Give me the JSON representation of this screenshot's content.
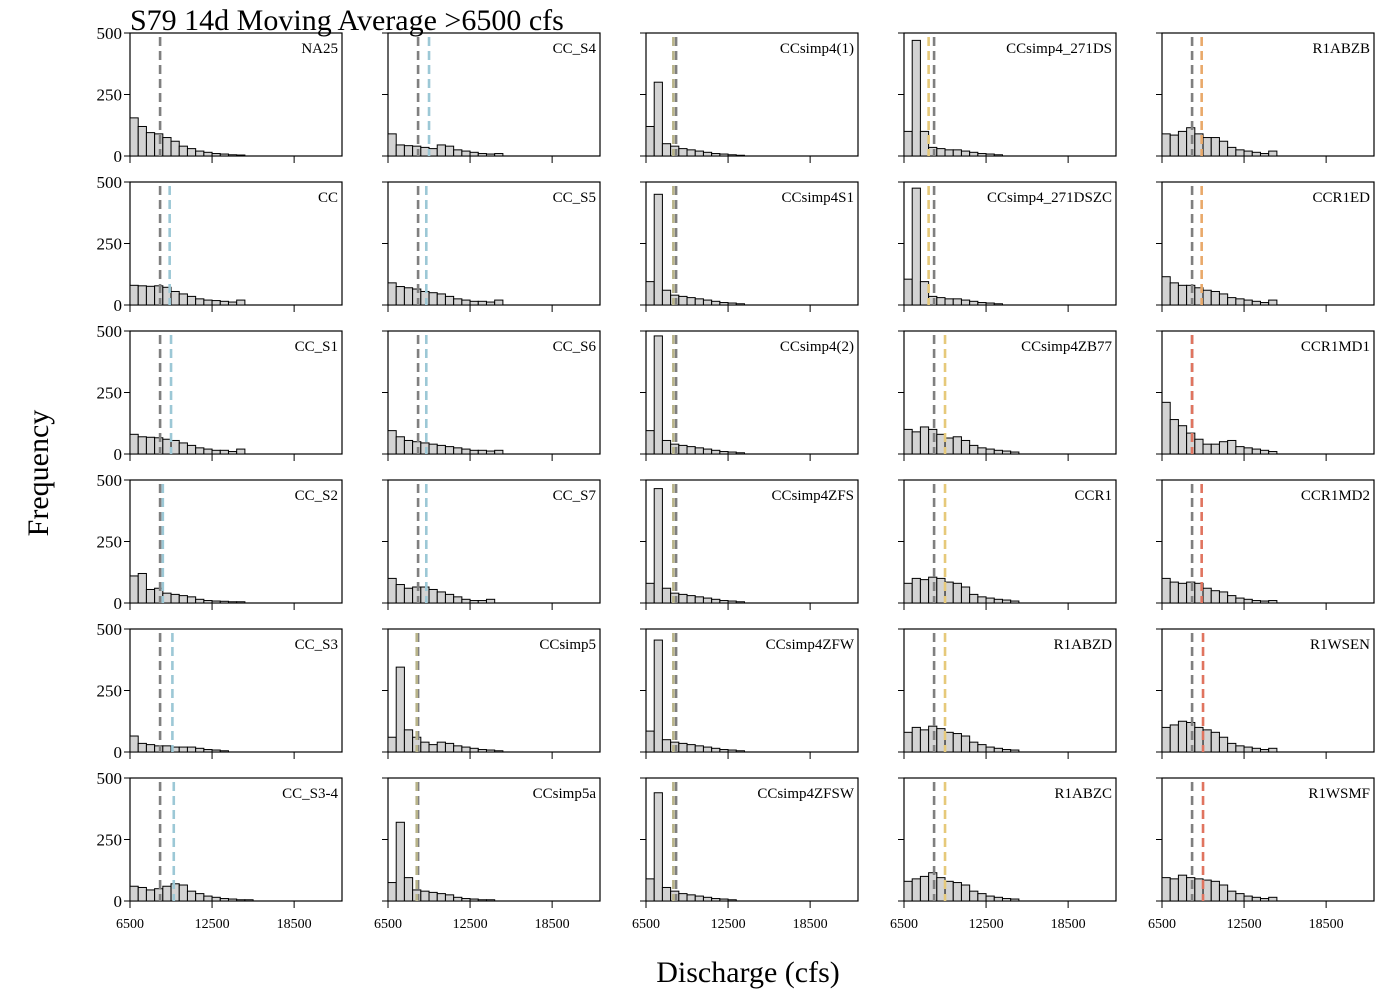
{
  "chart_data": {
    "type": "bar",
    "chart_kind": "histogram-small-multiples",
    "title": "S79 14d Moving Average >6500 cfs",
    "xlabel": "Discharge (cfs)",
    "ylabel": "Frequency",
    "xlim": [
      6500,
      22000
    ],
    "ylim": [
      0,
      500
    ],
    "xticks": [
      "6500",
      "12500",
      "18500"
    ],
    "yticks": [
      "0",
      "250",
      "500"
    ],
    "bin_start": 6500,
    "bin_width": 600,
    "grid": false,
    "colors": {
      "bar_fill": "#d3d3d3",
      "bar_edge": "#000000",
      "base_line": "#7f7f7f",
      "blue": "#9cc8d6",
      "yellow": "#e6c97a",
      "orange": "#e9a96a",
      "red": "#e0745f",
      "olive": "#b9b48a"
    },
    "panels": [
      {
        "name": "NA25",
        "values": [
          155,
          120,
          95,
          90,
          75,
          60,
          40,
          30,
          20,
          15,
          10,
          8,
          5,
          4
        ],
        "lines": [
          {
            "x": 8700,
            "color": "base"
          }
        ]
      },
      {
        "name": "CC",
        "values": [
          80,
          78,
          76,
          78,
          72,
          55,
          45,
          35,
          25,
          20,
          18,
          15,
          12,
          20
        ],
        "lines": [
          {
            "x": 8700,
            "color": "base"
          },
          {
            "x": 9400,
            "color": "blue"
          }
        ]
      },
      {
        "name": "CC_S1",
        "values": [
          80,
          70,
          68,
          66,
          60,
          55,
          45,
          35,
          25,
          20,
          15,
          15,
          10,
          20
        ],
        "lines": [
          {
            "x": 8700,
            "color": "base"
          },
          {
            "x": 9500,
            "color": "blue"
          }
        ]
      },
      {
        "name": "CC_S2",
        "values": [
          110,
          120,
          55,
          60,
          40,
          35,
          30,
          25,
          15,
          10,
          8,
          7,
          5,
          5
        ],
        "lines": [
          {
            "x": 8700,
            "color": "base"
          },
          {
            "x": 8900,
            "color": "blue"
          }
        ]
      },
      {
        "name": "CC_S3",
        "values": [
          65,
          35,
          30,
          25,
          25,
          20,
          20,
          20,
          15,
          10,
          8,
          5
        ],
        "lines": [
          {
            "x": 8700,
            "color": "base"
          },
          {
            "x": 9600,
            "color": "blue"
          }
        ]
      },
      {
        "name": "CC_S3-4",
        "values": [
          60,
          55,
          45,
          50,
          60,
          70,
          65,
          40,
          30,
          20,
          15,
          10,
          8,
          5,
          5
        ],
        "lines": [
          {
            "x": 8700,
            "color": "base"
          },
          {
            "x": 9700,
            "color": "blue"
          }
        ]
      },
      {
        "name": "CC_S4",
        "values": [
          90,
          45,
          42,
          40,
          35,
          30,
          45,
          40,
          25,
          20,
          15,
          10,
          8,
          10
        ],
        "lines": [
          {
            "x": 8700,
            "color": "base"
          },
          {
            "x": 9500,
            "color": "blue"
          }
        ]
      },
      {
        "name": "CC_S5",
        "values": [
          90,
          75,
          70,
          65,
          55,
          50,
          45,
          35,
          25,
          20,
          15,
          15,
          12,
          20
        ],
        "lines": [
          {
            "x": 8700,
            "color": "base"
          },
          {
            "x": 9300,
            "color": "blue"
          }
        ]
      },
      {
        "name": "CC_S6",
        "values": [
          95,
          70,
          55,
          50,
          45,
          40,
          35,
          30,
          25,
          20,
          15,
          15,
          12,
          15
        ],
        "lines": [
          {
            "x": 8700,
            "color": "base"
          },
          {
            "x": 9300,
            "color": "blue"
          }
        ]
      },
      {
        "name": "CC_S7",
        "values": [
          100,
          75,
          60,
          65,
          65,
          55,
          45,
          35,
          25,
          15,
          10,
          10,
          15
        ],
        "lines": [
          {
            "x": 8700,
            "color": "base"
          },
          {
            "x": 9300,
            "color": "blue"
          }
        ]
      },
      {
        "name": "CCsimp5",
        "values": [
          60,
          345,
          90,
          60,
          40,
          30,
          40,
          35,
          25,
          20,
          15,
          10,
          8,
          5
        ],
        "lines": [
          {
            "x": 8700,
            "color": "base"
          },
          {
            "x": 8600,
            "color": "olive"
          }
        ]
      },
      {
        "name": "CCsimp5a",
        "values": [
          75,
          320,
          95,
          45,
          40,
          35,
          30,
          25,
          15,
          10,
          8,
          5,
          5
        ],
        "lines": [
          {
            "x": 8700,
            "color": "base"
          },
          {
            "x": 8600,
            "color": "olive"
          }
        ]
      },
      {
        "name": "CCsimp4(1)",
        "values": [
          120,
          300,
          50,
          40,
          30,
          25,
          20,
          15,
          10,
          8,
          5,
          3
        ],
        "lines": [
          {
            "x": 8700,
            "color": "base"
          },
          {
            "x": 8500,
            "color": "olive"
          }
        ]
      },
      {
        "name": "CCsimp4S1",
        "values": [
          95,
          450,
          60,
          40,
          35,
          30,
          25,
          20,
          15,
          10,
          8,
          5
        ],
        "lines": [
          {
            "x": 8700,
            "color": "base"
          },
          {
            "x": 8500,
            "color": "olive"
          }
        ]
      },
      {
        "name": "CCsimp4(2)",
        "values": [
          95,
          480,
          55,
          40,
          35,
          30,
          25,
          20,
          15,
          10,
          8,
          5
        ],
        "lines": [
          {
            "x": 8700,
            "color": "base"
          },
          {
            "x": 8500,
            "color": "olive"
          }
        ]
      },
      {
        "name": "CCsimp4ZFS",
        "values": [
          80,
          465,
          60,
          40,
          35,
          30,
          25,
          20,
          15,
          10,
          8,
          5
        ],
        "lines": [
          {
            "x": 8700,
            "color": "base"
          },
          {
            "x": 8500,
            "color": "olive"
          }
        ]
      },
      {
        "name": "CCsimp4ZFW",
        "values": [
          85,
          455,
          50,
          40,
          35,
          30,
          25,
          20,
          15,
          10,
          8,
          5
        ],
        "lines": [
          {
            "x": 8700,
            "color": "base"
          },
          {
            "x": 8500,
            "color": "olive"
          }
        ]
      },
      {
        "name": "CCsimp4ZFSW",
        "values": [
          90,
          440,
          55,
          40,
          30,
          25,
          20,
          15,
          10,
          8,
          5
        ],
        "lines": [
          {
            "x": 8700,
            "color": "base"
          },
          {
            "x": 8500,
            "color": "olive"
          }
        ]
      },
      {
        "name": "CCsimp4_271DS",
        "values": [
          100,
          470,
          100,
          35,
          30,
          25,
          25,
          20,
          15,
          10,
          8,
          5
        ],
        "lines": [
          {
            "x": 8700,
            "color": "base"
          },
          {
            "x": 8300,
            "color": "yellow"
          }
        ]
      },
      {
        "name": "CCsimp4_271DSZC",
        "values": [
          105,
          475,
          95,
          35,
          30,
          25,
          25,
          20,
          15,
          10,
          8,
          5
        ],
        "lines": [
          {
            "x": 8700,
            "color": "base"
          },
          {
            "x": 8300,
            "color": "yellow"
          }
        ]
      },
      {
        "name": "CCsimp4ZB77",
        "values": [
          100,
          90,
          110,
          100,
          80,
          65,
          70,
          55,
          35,
          25,
          20,
          15,
          12,
          8
        ],
        "lines": [
          {
            "x": 8700,
            "color": "base"
          },
          {
            "x": 9500,
            "color": "yellow"
          }
        ]
      },
      {
        "name": "CCR1",
        "values": [
          80,
          100,
          95,
          105,
          100,
          85,
          80,
          65,
          35,
          25,
          20,
          15,
          12,
          8
        ],
        "lines": [
          {
            "x": 8700,
            "color": "base"
          },
          {
            "x": 9500,
            "color": "yellow"
          }
        ]
      },
      {
        "name": "R1ABZD",
        "values": [
          80,
          100,
          90,
          105,
          95,
          80,
          75,
          65,
          40,
          30,
          20,
          15,
          10,
          8
        ],
        "lines": [
          {
            "x": 8700,
            "color": "base"
          },
          {
            "x": 9500,
            "color": "yellow"
          }
        ]
      },
      {
        "name": "R1ABZC",
        "values": [
          80,
          90,
          100,
          115,
          95,
          80,
          75,
          65,
          40,
          30,
          20,
          15,
          10,
          8
        ],
        "lines": [
          {
            "x": 8700,
            "color": "base"
          },
          {
            "x": 9500,
            "color": "yellow"
          }
        ]
      },
      {
        "name": "R1ABZB",
        "values": [
          90,
          85,
          100,
          115,
          90,
          75,
          75,
          60,
          35,
          25,
          20,
          15,
          10,
          20
        ],
        "lines": [
          {
            "x": 8700,
            "color": "base"
          },
          {
            "x": 9400,
            "color": "orange"
          }
        ]
      },
      {
        "name": "CCR1ED",
        "values": [
          115,
          90,
          80,
          80,
          70,
          60,
          55,
          45,
          30,
          25,
          20,
          15,
          10,
          20
        ],
        "lines": [
          {
            "x": 8700,
            "color": "base"
          },
          {
            "x": 9400,
            "color": "orange"
          }
        ]
      },
      {
        "name": "CCR1MD1",
        "values": [
          210,
          140,
          115,
          85,
          60,
          40,
          40,
          50,
          55,
          30,
          25,
          20,
          15,
          10
        ],
        "lines": [
          {
            "x": 8700,
            "color": "base"
          },
          {
            "x": 8700,
            "color": "red"
          }
        ]
      },
      {
        "name": "CCR1MD2",
        "values": [
          100,
          85,
          80,
          85,
          80,
          60,
          50,
          45,
          30,
          20,
          15,
          10,
          8,
          10
        ],
        "lines": [
          {
            "x": 8700,
            "color": "base"
          },
          {
            "x": 9400,
            "color": "red"
          }
        ]
      },
      {
        "name": "R1WSEN",
        "values": [
          100,
          110,
          125,
          120,
          100,
          90,
          80,
          60,
          35,
          25,
          20,
          15,
          10,
          15
        ],
        "lines": [
          {
            "x": 8700,
            "color": "base"
          },
          {
            "x": 9500,
            "color": "red"
          }
        ]
      },
      {
        "name": "R1WSMF",
        "values": [
          95,
          90,
          105,
          95,
          90,
          85,
          80,
          65,
          40,
          30,
          20,
          15,
          10,
          15
        ],
        "lines": [
          {
            "x": 8700,
            "color": "base"
          },
          {
            "x": 9500,
            "color": "red"
          }
        ]
      }
    ]
  }
}
